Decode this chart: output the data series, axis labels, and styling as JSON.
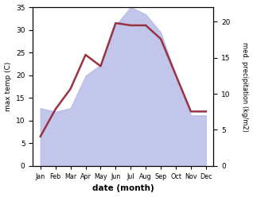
{
  "months": [
    "Jan",
    "Feb",
    "Mar",
    "Apr",
    "May",
    "Jun",
    "Jul",
    "Aug",
    "Sep",
    "Oct",
    "Nov",
    "Dec"
  ],
  "temp_max": [
    6.5,
    12.5,
    17.0,
    24.5,
    22.0,
    31.5,
    31.0,
    31.0,
    28.0,
    20.0,
    12.0,
    12.0
  ],
  "precip": [
    8.0,
    7.5,
    8.0,
    12.5,
    14.0,
    19.5,
    22.0,
    21.0,
    18.5,
    12.5,
    7.0,
    7.0
  ],
  "temp_color": "#993344",
  "precip_fill_color": "#b8bce8",
  "left_label": "max temp (C)",
  "right_label": "med. precipitation (kg/m2)",
  "xlabel": "date (month)",
  "left_ylim": [
    0,
    35
  ],
  "right_ylim": [
    0,
    22
  ],
  "left_yticks": [
    0,
    5,
    10,
    15,
    20,
    25,
    30,
    35
  ],
  "right_yticks": [
    0,
    5,
    10,
    15,
    20
  ],
  "bg_color": "#ffffff"
}
